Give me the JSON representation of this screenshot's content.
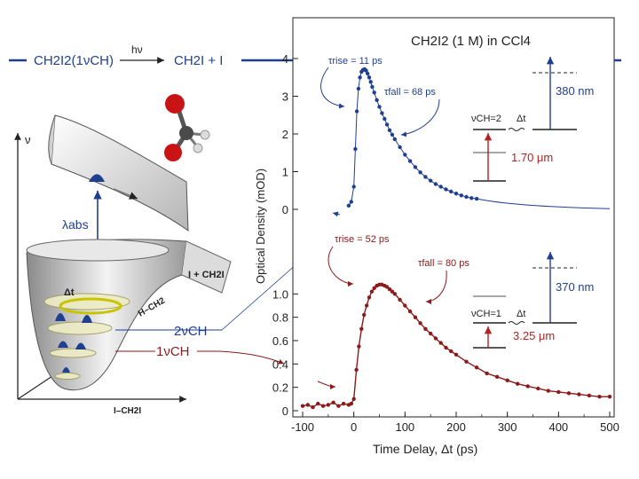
{
  "left_panel": {
    "reaction": {
      "reactant": "CH2I2(1νCH)",
      "hv": "hν",
      "products": "CH2I + I"
    },
    "axis_v": "ν",
    "lambda_abs": "λabs",
    "product_surface_label": "I + CH2I",
    "coord_h_ch2": "H–CH2",
    "coord_i_ch2i": "I–CH2I",
    "dt": "Δt",
    "level_2": "2νCH",
    "level_1": "1νCH"
  },
  "chart_data": [
    {
      "type": "scatter",
      "panel": "top",
      "title": "CH2I2 (1 M) in CCl4",
      "series": [
        {
          "name": "2νCH probe 380 nm",
          "color": "#1f3f8f",
          "x": [
            -10,
            -5,
            0,
            3,
            6,
            9,
            12,
            15,
            18,
            21,
            24,
            27,
            30,
            33,
            36,
            40,
            45,
            50,
            55,
            60,
            65,
            70,
            75,
            80,
            90,
            100,
            110,
            120,
            130,
            140,
            150,
            160,
            170,
            180,
            190,
            200,
            210,
            220,
            230,
            240
          ],
          "y": [
            0.1,
            0.2,
            0.6,
            1.6,
            2.6,
            3.2,
            3.5,
            3.65,
            3.7,
            3.72,
            3.68,
            3.6,
            3.5,
            3.38,
            3.25,
            3.1,
            2.9,
            2.72,
            2.55,
            2.4,
            2.25,
            2.1,
            1.98,
            1.86,
            1.65,
            1.45,
            1.28,
            1.12,
            0.98,
            0.86,
            0.76,
            0.67,
            0.6,
            0.53,
            0.47,
            0.42,
            0.37,
            0.33,
            0.3,
            0.28
          ]
        }
      ],
      "ylim": [
        0,
        4
      ],
      "yticks": [
        "0",
        "1",
        "2",
        "3",
        "4"
      ],
      "annotations": {
        "rise": "τrise = 11 ps",
        "fall": "τfall = 68 ps",
        "level": "νCH=2",
        "dt": "Δt",
        "ir": "1.70 μm",
        "probe": "380 nm"
      }
    },
    {
      "type": "scatter",
      "panel": "bottom",
      "series": [
        {
          "name": "1νCH probe 370 nm",
          "color": "#8b1a1a",
          "x": [
            -100,
            -90,
            -80,
            -70,
            -60,
            -50,
            -40,
            -30,
            -20,
            -10,
            -5,
            0,
            5,
            10,
            15,
            20,
            25,
            30,
            35,
            40,
            45,
            50,
            55,
            60,
            65,
            70,
            75,
            80,
            90,
            100,
            110,
            120,
            130,
            140,
            150,
            160,
            170,
            180,
            190,
            200,
            220,
            240,
            260,
            280,
            300,
            320,
            340,
            360,
            380,
            400,
            420,
            440,
            460,
            480,
            500
          ],
          "y": [
            0.04,
            0.05,
            0.03,
            0.06,
            0.04,
            0.05,
            0.07,
            0.04,
            0.06,
            0.05,
            0.06,
            0.1,
            0.35,
            0.55,
            0.7,
            0.82,
            0.9,
            0.97,
            1.02,
            1.05,
            1.07,
            1.08,
            1.08,
            1.07,
            1.06,
            1.04,
            1.02,
            1.0,
            0.95,
            0.9,
            0.85,
            0.8,
            0.75,
            0.7,
            0.66,
            0.62,
            0.58,
            0.54,
            0.51,
            0.48,
            0.42,
            0.37,
            0.32,
            0.29,
            0.26,
            0.23,
            0.21,
            0.19,
            0.17,
            0.16,
            0.15,
            0.14,
            0.13,
            0.12,
            0.12
          ]
        }
      ],
      "ylim": [
        0,
        1.2
      ],
      "yticks": [
        "0",
        "0.2",
        "0.4",
        "0.6",
        "0.8",
        "1.0"
      ],
      "annotations": {
        "rise": "τrise = 52 ps",
        "fall": "τfall = 80 ps",
        "level": "νCH=1",
        "dt": "Δt",
        "ir": "3.25 μm",
        "probe": "370 nm"
      }
    }
  ],
  "axes": {
    "xlabel": "Time Delay, Δt (ps)",
    "ylabel": "Optical Density (mOD)",
    "xlim": [
      -100,
      500
    ],
    "xticks": [
      "-100",
      "0",
      "100",
      "200",
      "300",
      "400",
      "500"
    ]
  }
}
